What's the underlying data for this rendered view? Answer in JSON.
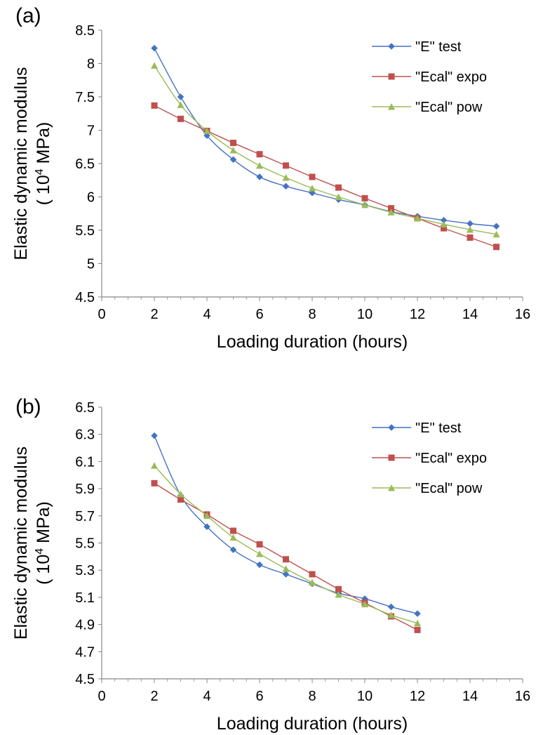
{
  "chart_data": [
    {
      "type": "line",
      "panel_label": "(a)",
      "xlabel": "Loading duration (hours)",
      "ylabel_line1": "Elastic dynamic modulus",
      "ylabel_line2_prefix": "( 10",
      "ylabel_line2_sup": "4",
      "ylabel_line2_suffix": " MPa)",
      "xlim": [
        0,
        16
      ],
      "ylim": [
        4.5,
        8.5
      ],
      "x_ticks": [
        "0",
        "2",
        "4",
        "6",
        "8",
        "10",
        "12",
        "14",
        "16"
      ],
      "y_ticks": [
        "4.5",
        "5",
        "5.5",
        "6",
        "6.5",
        "7",
        "7.5",
        "8",
        "8.5"
      ],
      "grid": false,
      "legend_position": "top-right",
      "series": [
        {
          "name": "\"E\" test",
          "color": "#4472c4",
          "marker": "diamond",
          "x": [
            2,
            3,
            4,
            5,
            6,
            7,
            8,
            9,
            10,
            11,
            12,
            13,
            14,
            15
          ],
          "y": [
            8.23,
            7.5,
            6.92,
            6.56,
            6.3,
            6.16,
            6.06,
            5.96,
            5.88,
            5.78,
            5.71,
            5.65,
            5.6,
            5.56
          ]
        },
        {
          "name": "\"Ecal\" expo",
          "color": "#c0504d",
          "marker": "square",
          "x": [
            2,
            3,
            4,
            5,
            6,
            7,
            8,
            9,
            10,
            11,
            12,
            13,
            14,
            15
          ],
          "y": [
            7.37,
            7.17,
            6.99,
            6.81,
            6.64,
            6.47,
            6.3,
            6.14,
            5.98,
            5.83,
            5.68,
            5.53,
            5.39,
            5.25
          ]
        },
        {
          "name": "\"Ecal\" pow",
          "color": "#9bbb59",
          "marker": "triangle",
          "x": [
            2,
            3,
            4,
            5,
            6,
            7,
            8,
            9,
            10,
            11,
            12,
            13,
            14,
            15
          ],
          "y": [
            7.97,
            7.38,
            6.99,
            6.7,
            6.47,
            6.29,
            6.13,
            6.0,
            5.88,
            5.77,
            5.68,
            5.59,
            5.51,
            5.44
          ]
        }
      ]
    },
    {
      "type": "line",
      "panel_label": "(b)",
      "xlabel": "Loading duration (hours)",
      "ylabel_line1": "Elastic dynamic modulus",
      "ylabel_line2_prefix": "( 10",
      "ylabel_line2_sup": "4",
      "ylabel_line2_suffix": " MPa)",
      "xlim": [
        0,
        16
      ],
      "ylim": [
        4.5,
        6.5
      ],
      "x_ticks": [
        "0",
        "2",
        "4",
        "6",
        "8",
        "10",
        "12",
        "14",
        "16"
      ],
      "y_ticks": [
        "4.5",
        "4.7",
        "4.9",
        "5.1",
        "5.3",
        "5.5",
        "5.7",
        "5.9",
        "6.1",
        "6.3",
        "6.5"
      ],
      "grid": false,
      "legend_position": "top-right",
      "series": [
        {
          "name": "\"E\" test",
          "color": "#4472c4",
          "marker": "diamond",
          "x": [
            2,
            3,
            4,
            5,
            6,
            7,
            8,
            9,
            10,
            11,
            12
          ],
          "y": [
            6.29,
            5.85,
            5.62,
            5.45,
            5.34,
            5.27,
            5.2,
            5.13,
            5.09,
            5.03,
            4.98
          ]
        },
        {
          "name": "\"Ecal\" expo",
          "color": "#c0504d",
          "marker": "square",
          "x": [
            2,
            3,
            4,
            5,
            6,
            7,
            8,
            9,
            10,
            11,
            12
          ],
          "y": [
            5.94,
            5.82,
            5.71,
            5.59,
            5.49,
            5.38,
            5.27,
            5.16,
            5.06,
            4.96,
            4.86
          ]
        },
        {
          "name": "\"Ecal\" pow",
          "color": "#9bbb59",
          "marker": "triangle",
          "x": [
            2,
            3,
            4,
            5,
            6,
            7,
            8,
            9,
            10,
            11,
            12
          ],
          "y": [
            6.07,
            5.86,
            5.7,
            5.54,
            5.42,
            5.31,
            5.21,
            5.12,
            5.05,
            4.97,
            4.91
          ]
        }
      ]
    }
  ]
}
